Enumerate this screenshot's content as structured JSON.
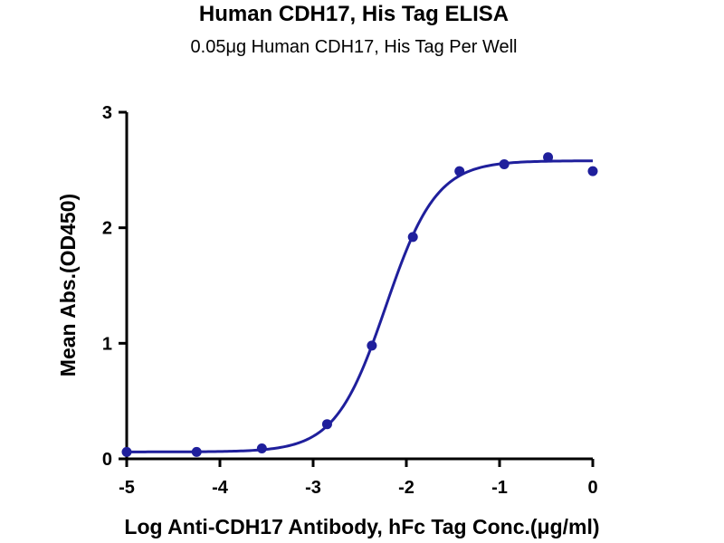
{
  "chart_data": {
    "type": "scatter",
    "title": "Human CDH17, His Tag ELISA",
    "subtitle": "0.05μg Human CDH17, His Tag Per Well",
    "xlabel": "Log Anti-CDH17 Antibody, hFc Tag Conc.(μg/ml)",
    "ylabel": "Mean Abs.(OD450)",
    "xlim": [
      -5,
      0
    ],
    "ylim": [
      0,
      3
    ],
    "x_ticks": [
      "-5",
      "-4",
      "-3",
      "-2",
      "-1",
      "0"
    ],
    "y_ticks": [
      "0",
      "1",
      "2",
      "3"
    ],
    "grid": false,
    "color": "#1f1f9c",
    "series": [
      {
        "x": [
          -5.0,
          -4.25,
          -3.55,
          -2.85,
          -2.37,
          -1.93,
          -1.43,
          -0.95,
          -0.48,
          0.0
        ],
        "y": [
          0.06,
          0.06,
          0.09,
          0.3,
          0.98,
          1.92,
          2.49,
          2.55,
          2.61,
          2.49
        ]
      }
    ],
    "fit_curve": {
      "model": "4PL",
      "bottom": 0.06,
      "top": 2.58,
      "log_ec50": -2.22,
      "hill_slope": 1.6
    }
  }
}
